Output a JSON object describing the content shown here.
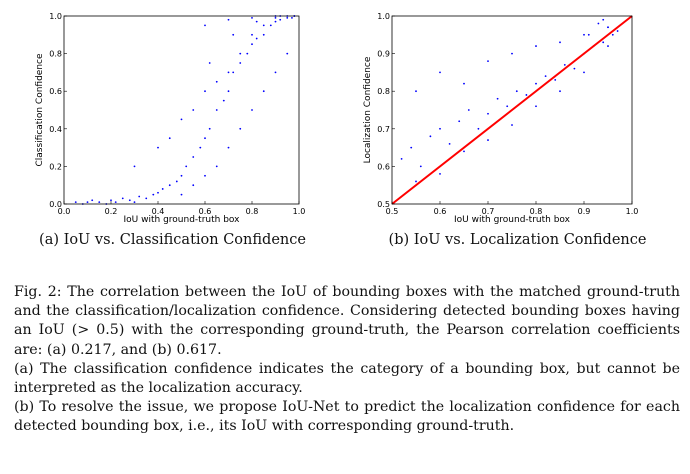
{
  "chart_data": [
    {
      "type": "scatter",
      "xlabel": "IoU with ground-truth box",
      "ylabel": "Classification Confidence",
      "xlim": [
        0.0,
        1.0
      ],
      "ylim": [
        0.0,
        1.0
      ],
      "xticks": [
        "0.0",
        "0.2",
        "0.4",
        "0.6",
        "0.8",
        "1.0"
      ],
      "yticks": [
        "0.0",
        "0.2",
        "0.4",
        "0.6",
        "0.8",
        "1.0"
      ],
      "grid": false,
      "point_color": "#0000ff",
      "series": [
        {
          "x": [
            0.05,
            0.08,
            0.1,
            0.12,
            0.15,
            0.18,
            0.2,
            0.22,
            0.25,
            0.28,
            0.3,
            0.32,
            0.35,
            0.38,
            0.4,
            0.42,
            0.45,
            0.48,
            0.5,
            0.52,
            0.55,
            0.58,
            0.6,
            0.62,
            0.65,
            0.68,
            0.7,
            0.72,
            0.75,
            0.78,
            0.8,
            0.82,
            0.85,
            0.88,
            0.9,
            0.92,
            0.95,
            0.98,
            0.3,
            0.4,
            0.45,
            0.5,
            0.55,
            0.6,
            0.65,
            0.7,
            0.75,
            0.8,
            0.85,
            0.9,
            0.95,
            0.5,
            0.55,
            0.6,
            0.65,
            0.7,
            0.75,
            0.8,
            0.85,
            0.9,
            0.95,
            0.6,
            0.7,
            0.8,
            0.9,
            0.98,
            0.62,
            0.72,
            0.82,
            0.92,
            0.97
          ],
          "y": [
            0.01,
            0.0,
            0.01,
            0.02,
            0.01,
            0.0,
            0.02,
            0.01,
            0.03,
            0.02,
            0.01,
            0.04,
            0.03,
            0.05,
            0.06,
            0.08,
            0.1,
            0.12,
            0.15,
            0.2,
            0.25,
            0.3,
            0.35,
            0.4,
            0.5,
            0.55,
            0.6,
            0.7,
            0.75,
            0.8,
            0.85,
            0.88,
            0.9,
            0.95,
            0.97,
            0.98,
            0.99,
            1.0,
            0.2,
            0.3,
            0.35,
            0.45,
            0.5,
            0.6,
            0.65,
            0.7,
            0.8,
            0.9,
            0.95,
            0.99,
            1.0,
            0.05,
            0.1,
            0.15,
            0.2,
            0.3,
            0.4,
            0.5,
            0.6,
            0.7,
            0.8,
            0.95,
            0.98,
            0.99,
            1.0,
            1.0,
            0.75,
            0.9,
            0.97,
            1.0,
            0.99
          ]
        }
      ]
    },
    {
      "type": "scatter",
      "xlabel": "IoU with ground-truth box",
      "ylabel": "Localization Confidence",
      "xlim": [
        0.5,
        1.0
      ],
      "ylim": [
        0.5,
        1.0
      ],
      "xticks": [
        "0.5",
        "0.6",
        "0.7",
        "0.8",
        "0.9",
        "1.0"
      ],
      "yticks": [
        "0.5",
        "0.6",
        "0.7",
        "0.8",
        "0.9",
        "1.0"
      ],
      "grid": false,
      "point_color": "#0000ff",
      "reference_line": {
        "x": [
          0.5,
          1.0
        ],
        "y": [
          0.5,
          1.0
        ],
        "color": "#ff0000"
      },
      "series": [
        {
          "x": [
            0.52,
            0.54,
            0.56,
            0.58,
            0.6,
            0.62,
            0.64,
            0.66,
            0.68,
            0.7,
            0.72,
            0.74,
            0.76,
            0.78,
            0.8,
            0.82,
            0.84,
            0.86,
            0.88,
            0.9,
            0.92,
            0.94,
            0.96,
            0.55,
            0.6,
            0.65,
            0.7,
            0.75,
            0.8,
            0.85,
            0.9,
            0.95,
            0.55,
            0.6,
            0.65,
            0.7,
            0.75,
            0.8,
            0.85,
            0.9,
            0.95,
            0.93,
            0.95,
            0.97,
            0.91,
            0.94
          ],
          "y": [
            0.62,
            0.65,
            0.6,
            0.68,
            0.7,
            0.66,
            0.72,
            0.75,
            0.7,
            0.74,
            0.78,
            0.76,
            0.8,
            0.79,
            0.82,
            0.84,
            0.83,
            0.87,
            0.86,
            0.9,
            0.92,
            0.93,
            0.95,
            0.8,
            0.85,
            0.82,
            0.88,
            0.9,
            0.92,
            0.93,
            0.95,
            0.97,
            0.56,
            0.58,
            0.64,
            0.67,
            0.71,
            0.76,
            0.8,
            0.85,
            0.92,
            0.98,
            0.97,
            0.96,
            0.95,
            0.99
          ]
        }
      ]
    }
  ],
  "subcaptions": {
    "a": "(a) IoU vs. Classification Confidence",
    "b": "(b) IoU vs. Localization Confidence"
  },
  "caption": {
    "p1": "Fig. 2: The correlation between the IoU of bounding boxes with the matched ground-truth and the classification/localization confidence. Considering detected bounding boxes having an IoU (> 0.5) with the corresponding ground-truth, the Pearson correlation coefficients are: (a) 0.217, and (b) 0.617.",
    "p2": "(a) The classification confidence indicates the category of a bounding box, but cannot be interpreted as the localization accuracy.",
    "p3": "(b) To resolve the issue, we propose IoU-Net to predict the localization confidence for each detected bounding box, i.e., its IoU with corresponding ground-truth."
  }
}
